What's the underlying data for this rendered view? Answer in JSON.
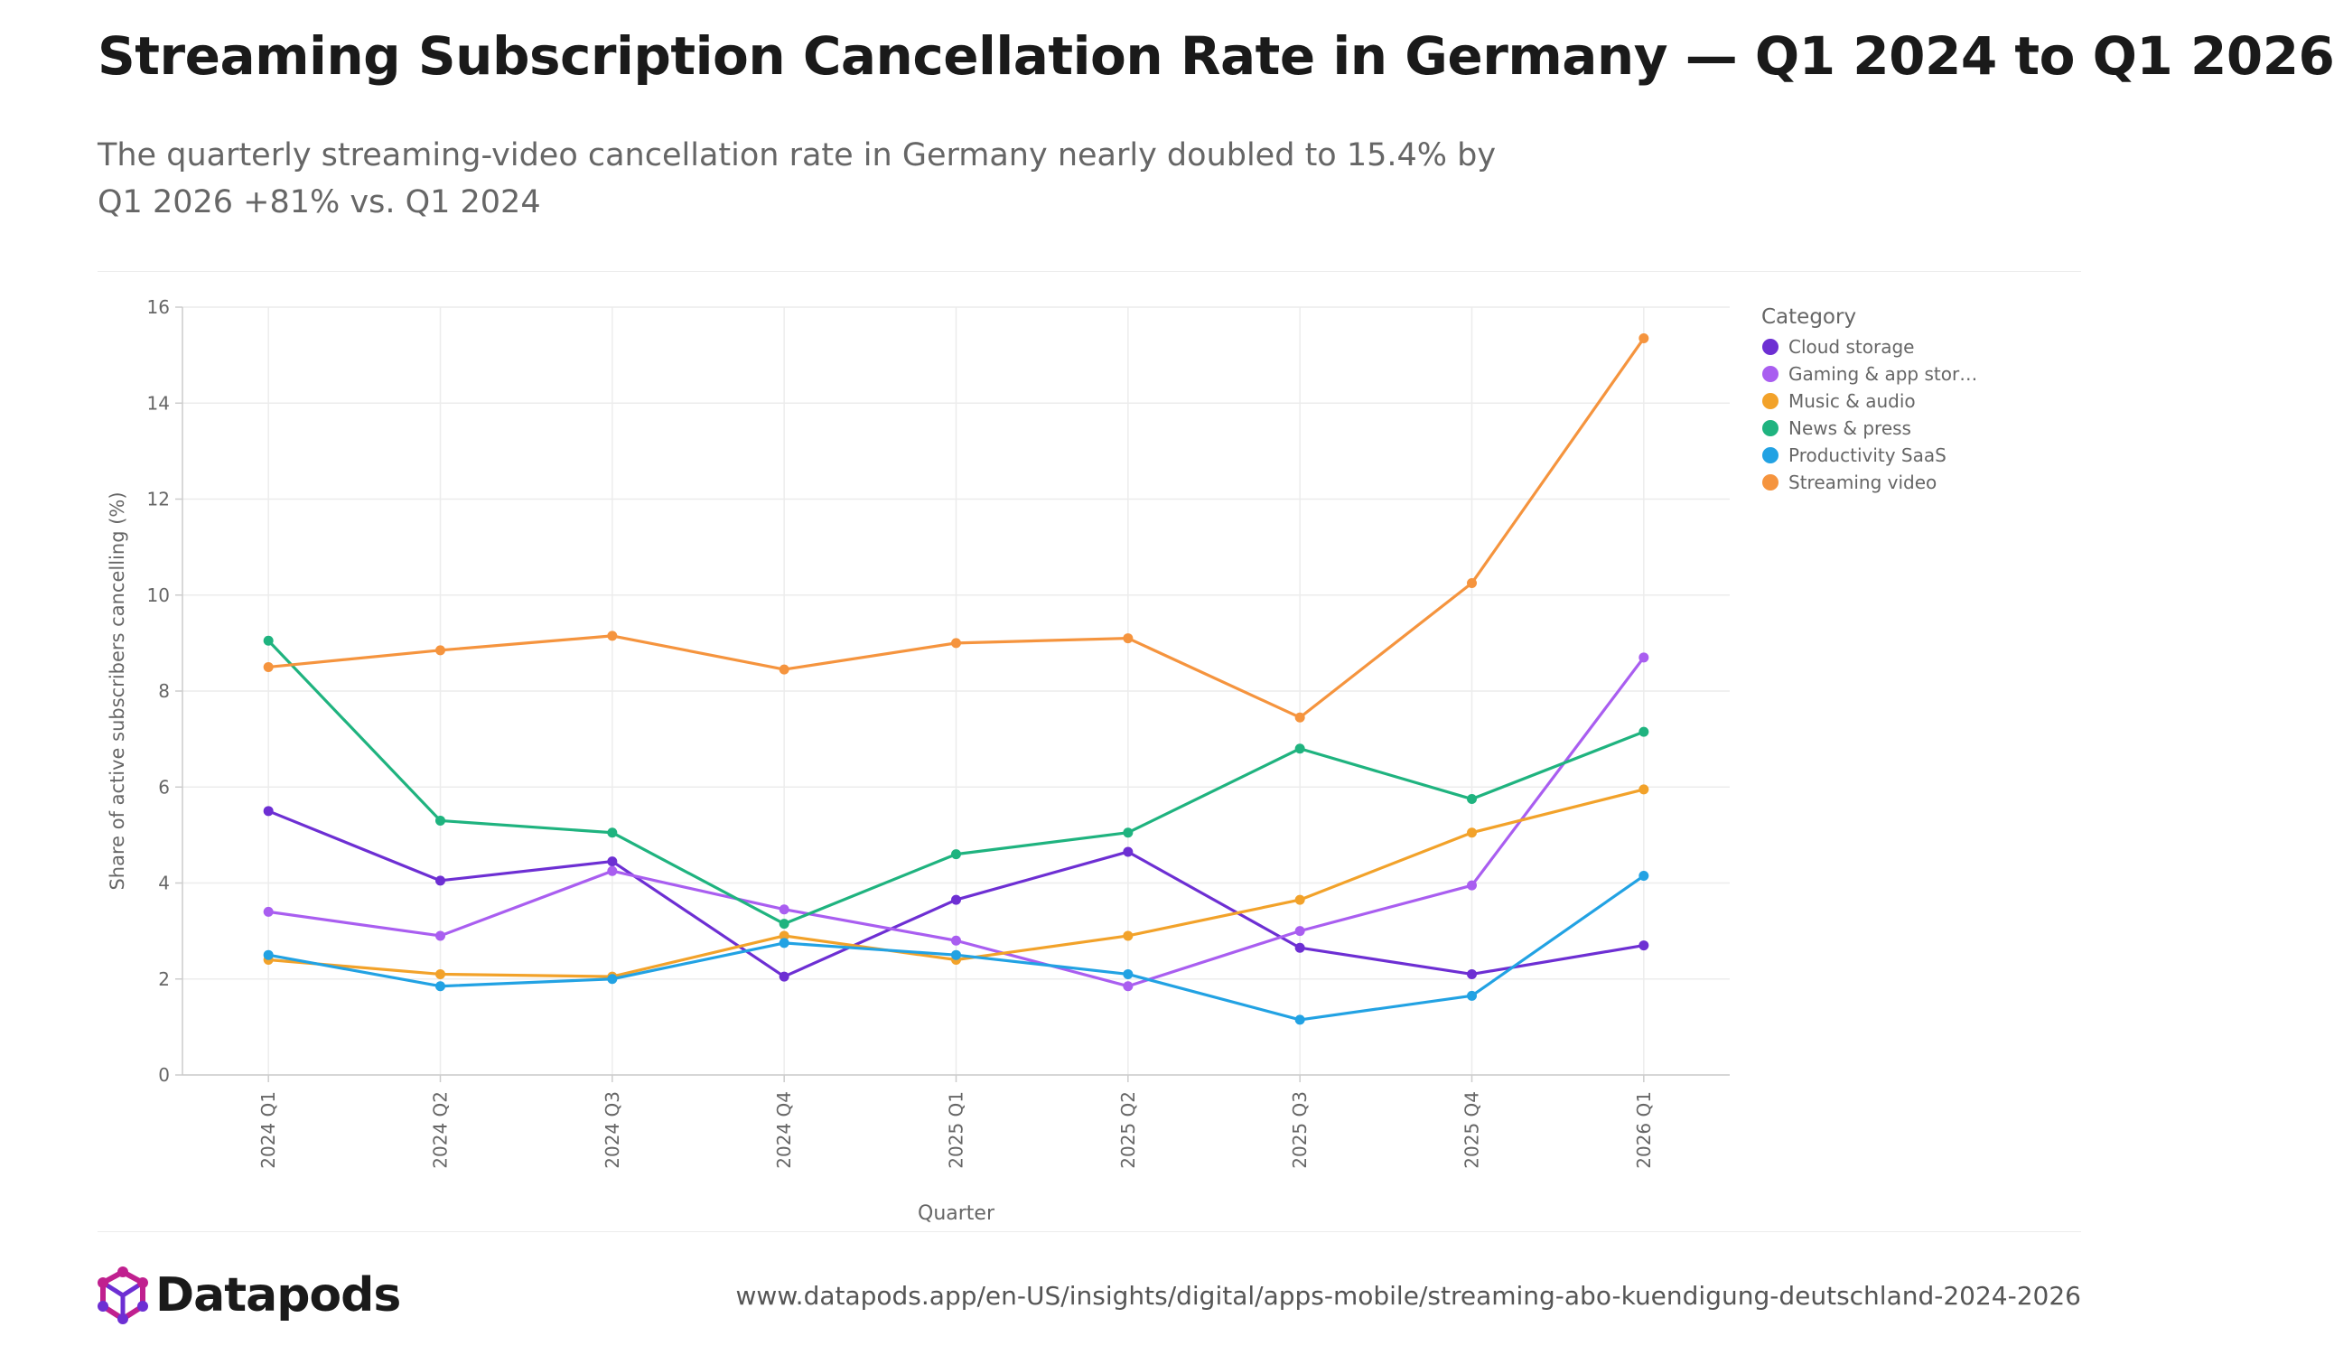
{
  "header": {
    "title": "Streaming Subscription Cancellation Rate in Germany — Q1 2024 to Q1 2026",
    "subtitle": "The quarterly streaming-video cancellation rate in Germany nearly doubled to 15.4% by Q1 2026 +81% vs. Q1 2024"
  },
  "footer": {
    "brand": "Datapods",
    "source_url": "www.datapods.app/en-US/insights/digital/apps-mobile/streaming-abo-kuendigung-deutschland-2024-2026"
  },
  "chart_data": {
    "type": "line",
    "xlabel": "Quarter",
    "ylabel": "Share of active subscribers cancelling (%)",
    "ylim": [
      0,
      16
    ],
    "yticks": [
      0,
      2,
      4,
      6,
      8,
      10,
      12,
      14,
      16
    ],
    "grid": true,
    "legend_title": "Category",
    "legend_position": "right",
    "categories": [
      "2024 Q1",
      "2024 Q2",
      "2024 Q3",
      "2024 Q4",
      "2025 Q1",
      "2025 Q2",
      "2025 Q3",
      "2025 Q4",
      "2026 Q1"
    ],
    "series": [
      {
        "name": "Cloud storage",
        "color": "#6d2fd3",
        "values": [
          5.5,
          4.05,
          4.45,
          2.05,
          3.65,
          4.65,
          2.65,
          2.1,
          2.7
        ]
      },
      {
        "name": "Gaming & app stor…",
        "color": "#a95ef0",
        "values": [
          3.4,
          2.9,
          4.25,
          3.45,
          2.8,
          1.85,
          3.0,
          3.95,
          8.7
        ]
      },
      {
        "name": "Music & audio",
        "color": "#f2a22a",
        "values": [
          2.4,
          2.1,
          2.05,
          2.9,
          2.4,
          2.9,
          3.65,
          5.05,
          5.95
        ]
      },
      {
        "name": "News & press",
        "color": "#1fb37f",
        "values": [
          9.05,
          5.3,
          5.05,
          3.15,
          4.6,
          5.05,
          6.8,
          5.75,
          7.15
        ]
      },
      {
        "name": "Productivity SaaS",
        "color": "#22a2e3",
        "values": [
          2.5,
          1.85,
          2.0,
          2.75,
          2.5,
          2.1,
          1.15,
          1.65,
          4.15
        ]
      },
      {
        "name": "Streaming video",
        "color": "#f5943e",
        "values": [
          8.5,
          8.85,
          9.15,
          8.45,
          9.0,
          9.1,
          7.45,
          10.25,
          15.35
        ]
      }
    ]
  },
  "colors": {
    "grid": "#ececec",
    "axis": "#cccccc",
    "logo_magenta": "#c0208f",
    "logo_purple": "#6d2fd3"
  }
}
